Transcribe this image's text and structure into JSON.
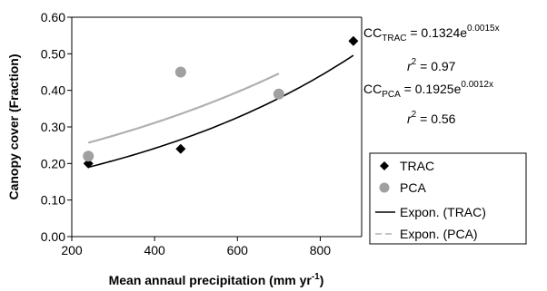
{
  "chart_data": {
    "type": "scatter",
    "title": "",
    "xlabel": "Mean annaul precipitation (mm yr",
    "xlabel_sup": "-1",
    "xlabel_end": ")",
    "ylabel": "Canopy cover (Fraction)",
    "xlim": [
      200,
      900
    ],
    "ylim": [
      0.0,
      0.6
    ],
    "x_ticks": [
      "200",
      "400",
      "600",
      "800"
    ],
    "x_tick_values": [
      200,
      400,
      600,
      800
    ],
    "y_ticks": [
      "0.00",
      "0.10",
      "0.20",
      "0.30",
      "0.40",
      "0.50",
      "0.60"
    ],
    "y_tick_values": [
      0.0,
      0.1,
      0.2,
      0.3,
      0.4,
      0.5,
      0.6
    ],
    "grid": false,
    "series": [
      {
        "name": "TRAC",
        "marker": "diamond",
        "color": "#000000",
        "points": [
          {
            "x": 240,
            "y": 0.2
          },
          {
            "x": 463,
            "y": 0.24
          },
          {
            "x": 880,
            "y": 0.535
          }
        ]
      },
      {
        "name": "PCA",
        "marker": "circle",
        "color": "#a0a0a0",
        "points": [
          {
            "x": 240,
            "y": 0.22
          },
          {
            "x": 463,
            "y": 0.45
          },
          {
            "x": 700,
            "y": 0.39
          }
        ]
      }
    ],
    "trendlines": [
      {
        "name": "Expon. (TRAC)",
        "a": 0.1324,
        "b": 0.0015,
        "x_range": [
          240,
          880
        ],
        "color": "#000000",
        "dash": "solid"
      },
      {
        "name": "Expon. (PCA)",
        "a": 0.1925,
        "b": 0.0012,
        "x_range": [
          240,
          700
        ],
        "color": "#b0b0b0",
        "dash": "dashed"
      }
    ],
    "legend_placement": "right",
    "annotations": {
      "eq1_pre": "CC",
      "eq1_sub": "TRAC",
      "eq1_mid": " = 0.1324e",
      "eq1_sup": "0.0015x",
      "r1_pre": "r",
      "r1_sup": "2",
      "r1_val": " = 0.97",
      "eq2_pre": "CC",
      "eq2_sub": "PCA",
      "eq2_mid": " = 0.1925e",
      "eq2_sup": "0.0012x",
      "r2_pre": "r",
      "r2_sup": "2",
      "r2_val": " = 0.56"
    }
  }
}
